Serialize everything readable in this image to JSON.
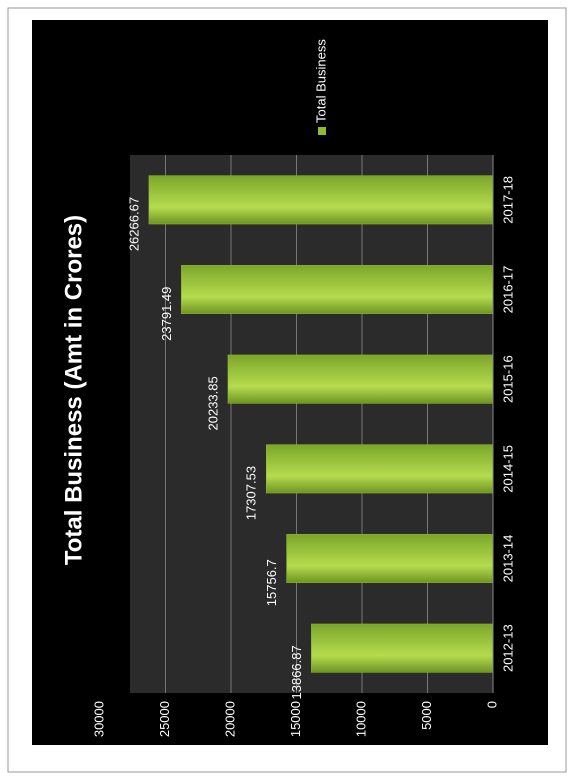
{
  "chart_data": {
    "type": "bar",
    "title": "Total Business (Amt in Crores)",
    "categories": [
      "2012-13",
      "2013-14",
      "2014-15",
      "2015-16",
      "2016-17",
      "2017-18"
    ],
    "series": [
      {
        "name": "Total Business",
        "color": "#8fbc2f",
        "values": [
          13866.87,
          15756.7,
          17307.53,
          20233.85,
          23791.49,
          26266.67
        ]
      }
    ],
    "ylim": [
      0,
      30000
    ],
    "yticks": [
      0,
      5000,
      10000,
      15000,
      20000,
      25000,
      30000
    ],
    "grid": true,
    "legend": "right",
    "rotation": -90
  }
}
